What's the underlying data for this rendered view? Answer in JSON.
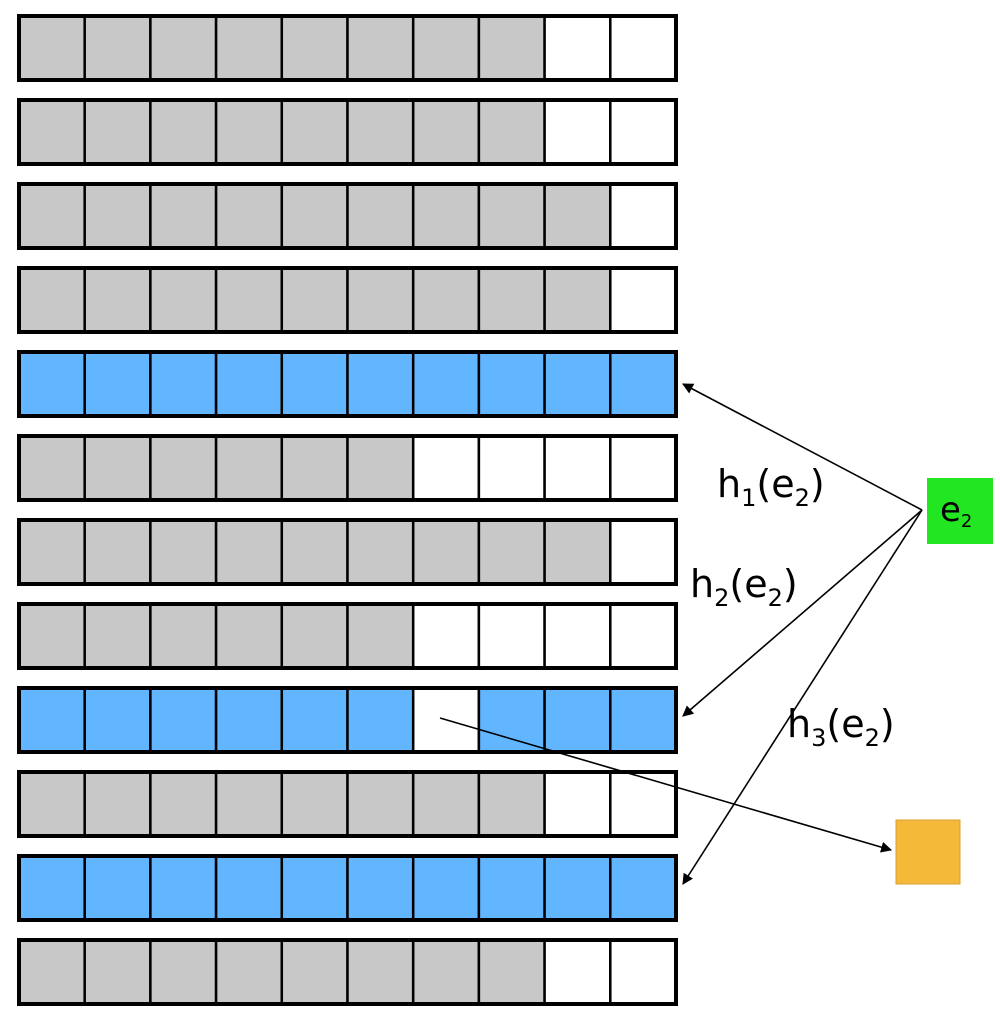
{
  "colors": {
    "filled": "#c8c8c8",
    "empty": "#ffffff",
    "highlight": "#62b6ff",
    "element": "#22e622",
    "target": "#f5b93a",
    "stroke": "#000000"
  },
  "rows": [
    [
      "filled",
      "filled",
      "filled",
      "filled",
      "filled",
      "filled",
      "filled",
      "filled",
      "empty",
      "empty"
    ],
    [
      "filled",
      "filled",
      "filled",
      "filled",
      "filled",
      "filled",
      "filled",
      "filled",
      "empty",
      "empty"
    ],
    [
      "filled",
      "filled",
      "filled",
      "filled",
      "filled",
      "filled",
      "filled",
      "filled",
      "filled",
      "empty"
    ],
    [
      "filled",
      "filled",
      "filled",
      "filled",
      "filled",
      "filled",
      "filled",
      "filled",
      "filled",
      "empty"
    ],
    [
      "highlight",
      "highlight",
      "highlight",
      "highlight",
      "highlight",
      "highlight",
      "highlight",
      "highlight",
      "highlight",
      "highlight"
    ],
    [
      "filled",
      "filled",
      "filled",
      "filled",
      "filled",
      "filled",
      "empty",
      "empty",
      "empty",
      "empty"
    ],
    [
      "filled",
      "filled",
      "filled",
      "filled",
      "filled",
      "filled",
      "filled",
      "filled",
      "filled",
      "empty"
    ],
    [
      "filled",
      "filled",
      "filled",
      "filled",
      "filled",
      "filled",
      "empty",
      "empty",
      "empty",
      "empty"
    ],
    [
      "highlight",
      "highlight",
      "highlight",
      "highlight",
      "highlight",
      "highlight",
      "empty",
      "highlight",
      "highlight",
      "highlight"
    ],
    [
      "filled",
      "filled",
      "filled",
      "filled",
      "filled",
      "filled",
      "filled",
      "filled",
      "empty",
      "empty"
    ],
    [
      "highlight",
      "highlight",
      "highlight",
      "highlight",
      "highlight",
      "highlight",
      "highlight",
      "highlight",
      "highlight",
      "highlight"
    ],
    [
      "filled",
      "filled",
      "filled",
      "filled",
      "filled",
      "filled",
      "filled",
      "filled",
      "empty",
      "empty"
    ]
  ],
  "element": {
    "base": "e",
    "sub": "2"
  },
  "hashes": [
    {
      "fn": "h",
      "idx": "1",
      "arg_base": "e",
      "arg_sub": "2",
      "target_row": 5
    },
    {
      "fn": "h",
      "idx": "2",
      "arg_base": "e",
      "arg_sub": "2",
      "target_row": 9
    },
    {
      "fn": "h",
      "idx": "3",
      "arg_base": "e",
      "arg_sub": "2",
      "target_row": 11
    }
  ],
  "evicted_slot": {
    "row": 9,
    "col": 7
  }
}
